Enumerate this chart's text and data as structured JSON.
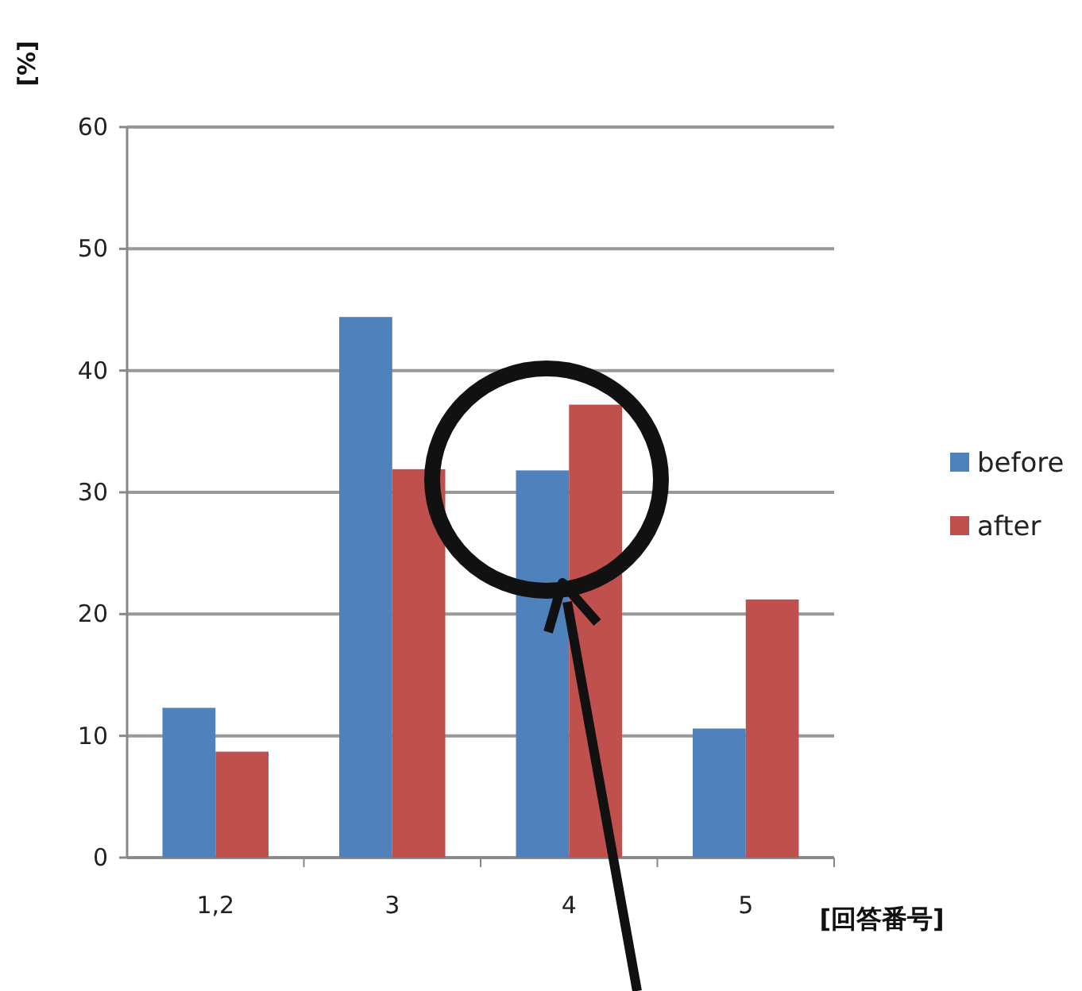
{
  "chart_data": {
    "type": "bar",
    "ylabel": "[%]",
    "xlabel": "[回答番号]",
    "categories": [
      "1,2",
      "3",
      "4",
      "5"
    ],
    "series": [
      {
        "name": "before",
        "color": "#4f81bd",
        "values": [
          12.3,
          44.4,
          31.8,
          10.6
        ]
      },
      {
        "name": "after",
        "color": "#c0504d",
        "values": [
          8.7,
          31.9,
          37.2,
          21.2
        ]
      }
    ],
    "ylim": [
      0,
      60
    ],
    "yticks": [
      0,
      10,
      20,
      30,
      40,
      50,
      60
    ],
    "grid": "y",
    "legend": "right"
  }
}
